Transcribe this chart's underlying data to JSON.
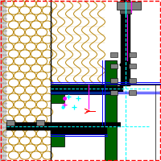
{
  "bg": "#ffffff",
  "red": "#ff0000",
  "mag": "#ff00ff",
  "cya": "#00ffff",
  "blu": "#0000ff",
  "grn": "#006400",
  "blk": "#000000",
  "gray": "#808080",
  "ins": "#b8860b",
  "wht": "#ffffff",
  "ltgray": "#d0d0d0",
  "dkgray": "#555555"
}
